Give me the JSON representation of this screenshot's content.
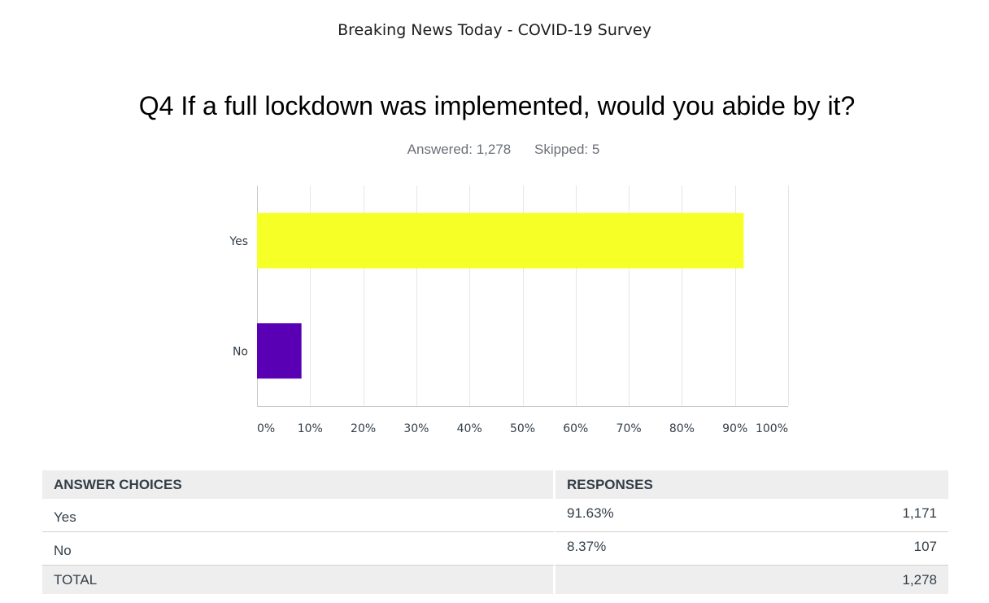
{
  "header": {
    "survey_title": "Breaking News Today - COVID-19 Survey",
    "question": "Q4 If a full lockdown was implemented, would you abide by it?",
    "answered": "Answered: 1,278",
    "skipped": "Skipped: 5"
  },
  "chart_data": {
    "type": "bar",
    "orientation": "horizontal",
    "categories": [
      "Yes",
      "No"
    ],
    "values": [
      91.63,
      8.37
    ],
    "colors": [
      "#f6ff26",
      "#5a00b4"
    ],
    "xlim": [
      0,
      100
    ],
    "xticks": [
      "0%",
      "10%",
      "20%",
      "30%",
      "40%",
      "50%",
      "60%",
      "70%",
      "80%",
      "90%",
      "100%"
    ],
    "grid": true
  },
  "table": {
    "headers": {
      "choice": "ANSWER CHOICES",
      "responses": "RESPONSES"
    },
    "rows": [
      {
        "choice": "Yes",
        "percent": "91.63%",
        "count": "1,171"
      },
      {
        "choice": "No",
        "percent": "8.37%",
        "count": "107"
      }
    ],
    "total": {
      "label": "TOTAL",
      "count": "1,278"
    }
  }
}
